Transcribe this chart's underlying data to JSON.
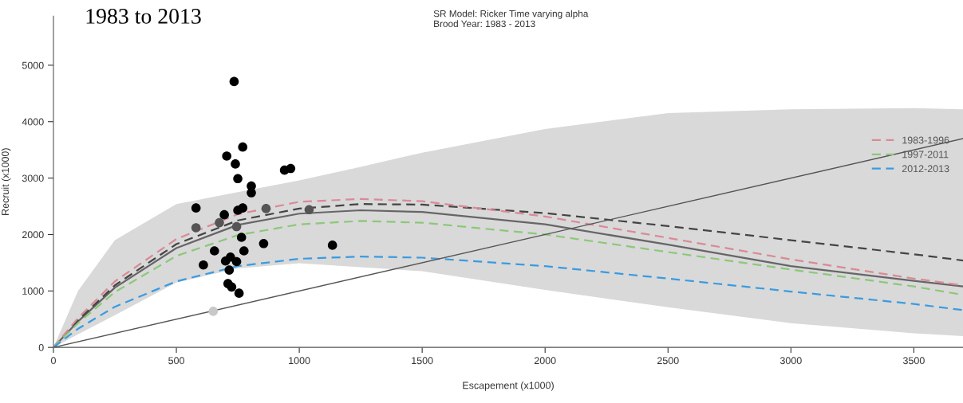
{
  "chart_data": {
    "type": "line",
    "title": "1983 to 2013",
    "subtitle": "SR Model: Ricker Time varying alpha\nBrood Year: 1983 - 2013",
    "xlabel": "Escapement (x1000)",
    "ylabel": "Recruit (x1000)",
    "xlim": [
      0,
      3700
    ],
    "ylim": [
      0,
      5870
    ],
    "xticks": [
      0,
      500,
      1000,
      1500,
      2000,
      2500,
      3000,
      3500
    ],
    "yticks": [
      0,
      1000,
      2000,
      3000,
      4000,
      5000
    ],
    "grid": false,
    "legend": "right",
    "series": [
      {
        "color": "#666666",
        "line_style": "solid",
        "marker": "none",
        "x": [
          0,
          100,
          250,
          500,
          750,
          1000,
          1250,
          1500,
          2000,
          2500,
          3000,
          3500,
          3700
        ],
        "values": [
          0,
          460,
          1060,
          1760,
          2170,
          2370,
          2430,
          2400,
          2180,
          1820,
          1440,
          1180,
          1080
        ],
        "lower": [
          0,
          230,
          570,
          1150,
          1400,
          1490,
          1420,
          1350,
          1020,
          710,
          430,
          250,
          200
        ],
        "upper": [
          0,
          1000,
          1900,
          2540,
          2750,
          2960,
          3200,
          3450,
          3870,
          4150,
          4220,
          4240,
          4220
        ]
      },
      {
        "color": "#444444",
        "line_style": "dashed",
        "marker": "none",
        "x": [
          0,
          100,
          250,
          500,
          750,
          1000,
          1250,
          1500,
          2000,
          2500,
          3000,
          3500,
          3700
        ],
        "values": [
          0,
          480,
          1100,
          1830,
          2250,
          2460,
          2540,
          2530,
          2380,
          2150,
          1900,
          1650,
          1540
        ]
      },
      {
        "name": "1983-1996",
        "color": "#d98a96",
        "line_style": "dashed",
        "marker": "none",
        "x": [
          0,
          100,
          250,
          500,
          750,
          1000,
          1250,
          1500,
          2000,
          2500,
          3000,
          3500,
          3700
        ],
        "values": [
          0,
          520,
          1170,
          1920,
          2360,
          2580,
          2630,
          2590,
          2320,
          1940,
          1560,
          1220,
          1100
        ]
      },
      {
        "name": "1997-2011",
        "color": "#8cc87a",
        "line_style": "dashed",
        "marker": "none",
        "x": [
          0,
          100,
          250,
          500,
          750,
          1000,
          1250,
          1500,
          2000,
          2500,
          3000,
          3500,
          3700
        ],
        "values": [
          0,
          430,
          980,
          1620,
          1990,
          2180,
          2240,
          2210,
          2000,
          1690,
          1380,
          1080,
          930
        ]
      },
      {
        "name": "2012-2013",
        "color": "#3a9be0",
        "line_style": "dashed",
        "marker": "none",
        "x": [
          0,
          100,
          250,
          500,
          750,
          1000,
          1250,
          1500,
          2000,
          2500,
          3000,
          3500,
          3700
        ],
        "values": [
          0,
          330,
          720,
          1170,
          1440,
          1570,
          1610,
          1590,
          1440,
          1220,
          990,
          770,
          660
        ]
      },
      {
        "color": "#555555",
        "line_style": "solid",
        "marker": "none",
        "x": [
          0,
          3700
        ],
        "values": [
          0,
          3700
        ]
      },
      {
        "type": "scatter",
        "marker": "circle",
        "x": [
          735,
          770,
          705,
          740,
          750,
          805,
          805,
          940,
          965,
          580,
          580,
          695,
          675,
          770,
          750,
          745,
          765,
          865,
          1040,
          855,
          1135,
          610,
          655,
          775,
          700,
          720,
          745,
          715,
          710,
          725,
          755,
          650
        ],
        "values": [
          4710,
          3550,
          3390,
          3250,
          2990,
          2860,
          2740,
          3140,
          3170,
          2470,
          2120,
          2350,
          2210,
          2470,
          2430,
          2140,
          1950,
          2460,
          2440,
          1840,
          1810,
          1460,
          1710,
          1710,
          1530,
          1600,
          1520,
          1370,
          1130,
          1070,
          960,
          640
        ],
        "colors": [
          "#000000",
          "#000000",
          "#000000",
          "#000000",
          "#000000",
          "#000000",
          "#000000",
          "#000000",
          "#000000",
          "#000000",
          "#555555",
          "#000000",
          "#555555",
          "#000000",
          "#000000",
          "#555555",
          "#000000",
          "#555555",
          "#555555",
          "#000000",
          "#000000",
          "#000000",
          "#000000",
          "#000000",
          "#000000",
          "#000000",
          "#000000",
          "#000000",
          "#000000",
          "#000000",
          "#000000",
          "#c8c8c8"
        ]
      }
    ]
  }
}
